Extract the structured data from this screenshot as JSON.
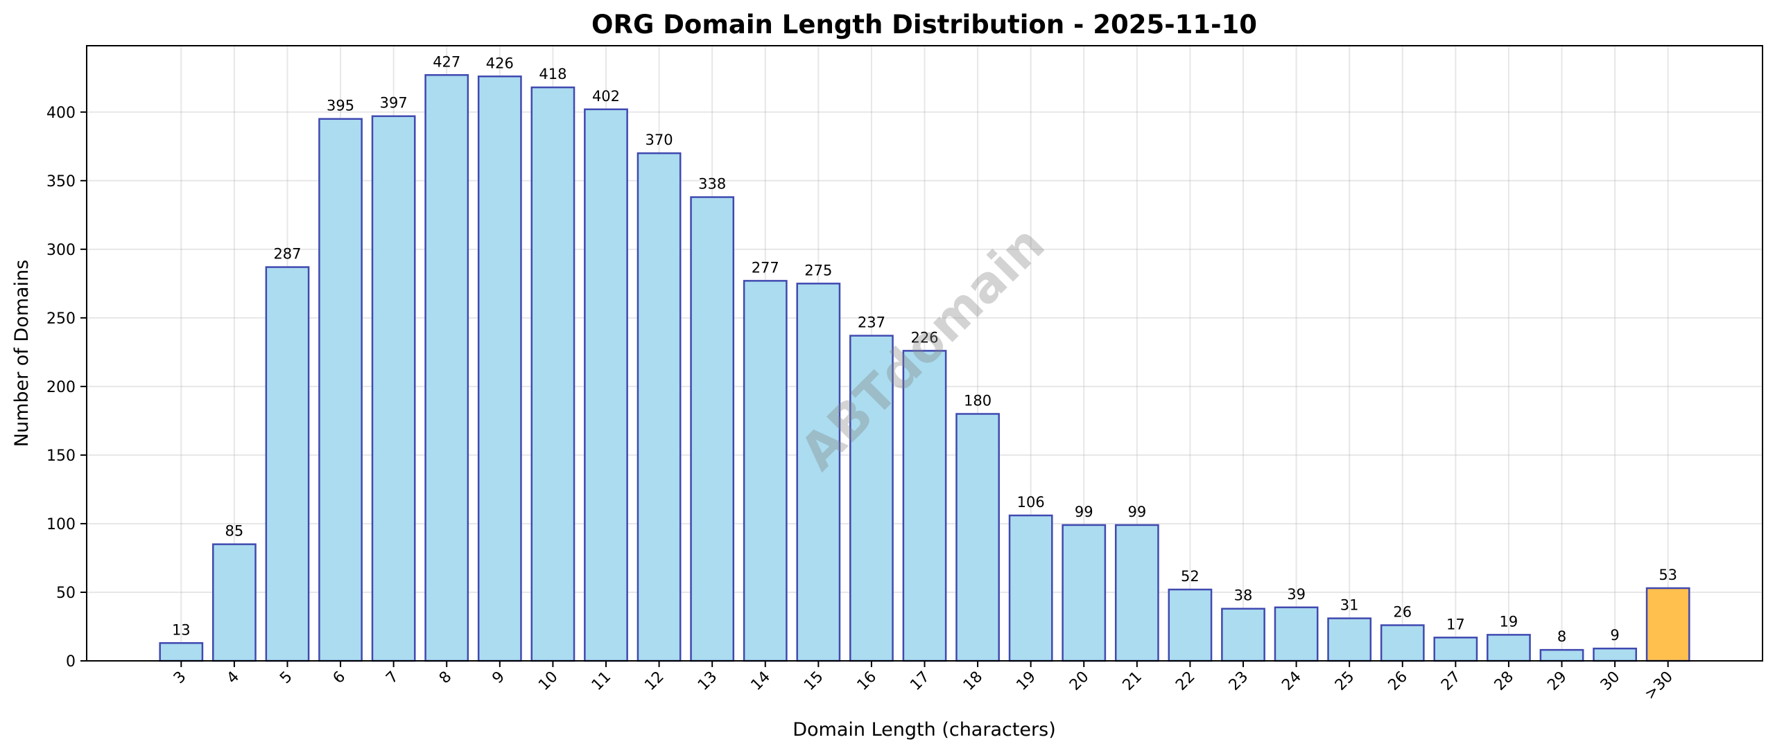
{
  "chart_data": {
    "type": "bar",
    "title": "ORG Domain Length Distribution - 2025-11-10",
    "xlabel": "Domain Length (characters)",
    "ylabel": "Number of Domains",
    "categories": [
      "3",
      "4",
      "5",
      "6",
      "7",
      "8",
      "9",
      "10",
      "11",
      "12",
      "13",
      "14",
      "15",
      "16",
      "17",
      "18",
      "19",
      "20",
      "21",
      "22",
      "23",
      "24",
      "25",
      "26",
      "27",
      "28",
      "29",
      "30",
      ">30"
    ],
    "values": [
      13,
      85,
      287,
      395,
      397,
      427,
      426,
      418,
      402,
      370,
      338,
      277,
      275,
      237,
      226,
      180,
      106,
      99,
      99,
      52,
      38,
      39,
      31,
      26,
      17,
      19,
      8,
      9,
      53
    ],
    "ylim": [
      0,
      448.35
    ],
    "yticks": [
      0,
      50,
      100,
      150,
      200,
      250,
      300,
      350,
      400
    ],
    "grid": true,
    "highlighted_category": ">30",
    "colors": {
      "bar": "#abdcef",
      "bar_edge": "#4049b0",
      "highlight": "#ffc04d"
    },
    "watermark": "ABTdomain"
  }
}
